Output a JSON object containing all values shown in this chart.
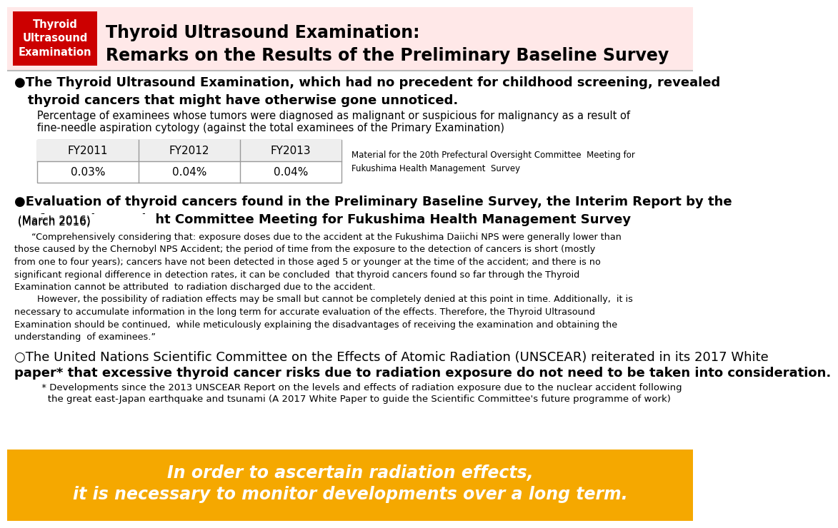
{
  "header_box_color": "#CC0000",
  "header_box_text": "Thyroid\nUltrasound\nExamination",
  "header_bg_color": "#FFE8E8",
  "header_title_line1": "Thyroid Ultrasound Examination:",
  "header_title_line2": "Remarks on the Results of the Preliminary Baseline Survey",
  "footer_bg_color": "#F5A800",
  "footer_line1": "In order to ascertain radiation effects,",
  "footer_line2": "it is necessary to monitor developments over a long term.",
  "bullet1_bold": "●The Thyroid Ultrasound Examination, which had no precedent for childhood screening, revealed\n   thyroid cancers that might have otherwise gone unnoticed.",
  "bullet1_sub_line1": "   Percentage of examinees whose tumors were diagnosed as malignant or suspicious for malignancy as a result of",
  "bullet1_sub_line2": "   fine-needle aspiration cytology (against the total examinees of the Primary Examination)",
  "table_headers": [
    "FY2011",
    "FY2012",
    "FY2013"
  ],
  "table_values": [
    "0.03%",
    "0.04%",
    "0.04%"
  ],
  "table_note_line1": "Material for the 20th Prefectural Oversight Committee  Meeting for",
  "table_note_line2": "Fukushima Health Management  Survey",
  "bullet2_bold": "●Evaluation of thyroid cancers found in the Preliminary Baseline Survey, the Interim Report by the\nPrefectural Oversight Committee Meeting for Fukushima Health Management Survey",
  "bullet2_normal": " (March 2016)",
  "bullet2_quote_line1": "      “Comprehensively considering that: exposure doses due to the accident at the Fukushima Daiichi NPS were generally lower than",
  "bullet2_quote_line2": "those caused by the Chernobyl NPS Accident; the period of time from the exposure to the detection of cancers is short (mostly",
  "bullet2_quote_line3": "from one to four years); cancers have not been detected in those aged 5 or younger at the time of the accident; and there is no",
  "bullet2_quote_line4": "significant regional difference in detection rates, it can be concluded  that thyroid cancers found so far through the Thyroid",
  "bullet2_quote_line5": "Examination cannot be attributed  to radiation discharged due to the accident.",
  "bullet2_quote_line6": "        However, the possibility of radiation effects may be small but cannot be completely denied at this point in time. Additionally,  it is",
  "bullet2_quote_line7": "necessary to accumulate information in the long term for accurate evaluation of the effects. Therefore, the Thyroid Ultrasound",
  "bullet2_quote_line8": "Examination should be continued,  while meticulously explaining the disadvantages of receiving the examination and obtaining the",
  "bullet2_quote_line9": "understanding  of examinees.”",
  "bullet3_line1": "○The United Nations Scientific Committee on the Effects of Atomic Radiation (UNSCEAR) reiterated in its 2017 White",
  "bullet3_line2": "paper* that excessive thyroid cancer risks due to radiation exposure do not need to be taken into consideration.",
  "bullet3_sub_line1": "         * Developments since the 2013 UNSCEAR Report on the levels and effects of radiation exposure due to the nuclear accident following",
  "bullet3_sub_line2": "           the great east-Japan earthquake and tsunami (A 2017 White Paper to guide the Scientific Committee's future programme of work)"
}
